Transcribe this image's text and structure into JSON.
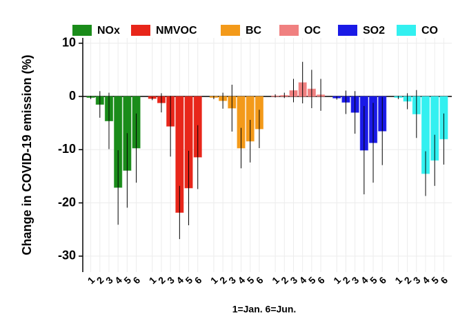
{
  "chart_data": {
    "type": "bar",
    "x_label": "1=Jan.  6=Jun.",
    "y_label": "Change in COVID-19 emission (%)",
    "categories": [
      "1",
      "2",
      "3",
      "4",
      "5",
      "6"
    ],
    "ylim": [
      -33,
      11
    ],
    "yticks": [
      10,
      0,
      -10,
      -20,
      -30
    ],
    "grid": true,
    "series": [
      {
        "name": "NOx",
        "color": "#1a8c1a",
        "values": [
          -0.2,
          -1.5,
          -4.6,
          -17.1,
          -13.9,
          -9.7
        ],
        "errors": [
          0.3,
          2.5,
          5.3,
          7,
          7,
          6.5
        ]
      },
      {
        "name": "NMVOC",
        "color": "#e8261a",
        "values": [
          -0.4,
          -1.2,
          -5.6,
          -21.8,
          -17.2,
          -11.4
        ],
        "errors": [
          0.3,
          1.8,
          5.7,
          5,
          7,
          6
        ]
      },
      {
        "name": "BC",
        "color": "#f39a1a",
        "values": [
          -0.2,
          -0.8,
          -2.2,
          -9.7,
          -8.4,
          -6.1
        ],
        "errors": [
          0.3,
          1.5,
          4.4,
          3.8,
          4,
          3.6
        ]
      },
      {
        "name": "OC",
        "color": "#f08080",
        "values": [
          0.1,
          0.2,
          1.1,
          2.6,
          1.4,
          0.3
        ],
        "errors": [
          0.3,
          0.5,
          2.2,
          3.9,
          3.6,
          3
        ]
      },
      {
        "name": "SO2",
        "color": "#1a1ae6",
        "values": [
          -0.3,
          -1.1,
          -3,
          -10.1,
          -8.7,
          -6.5
        ],
        "errors": [
          0.3,
          2.2,
          4,
          8.3,
          7.5,
          6.4
        ]
      },
      {
        "name": "CO",
        "color": "#33f0f0",
        "values": [
          -0.2,
          -0.9,
          -3.3,
          -14.5,
          -12,
          -8
        ],
        "errors": [
          0.3,
          1.5,
          4.5,
          4.2,
          4.8,
          4.8
        ]
      }
    ]
  }
}
